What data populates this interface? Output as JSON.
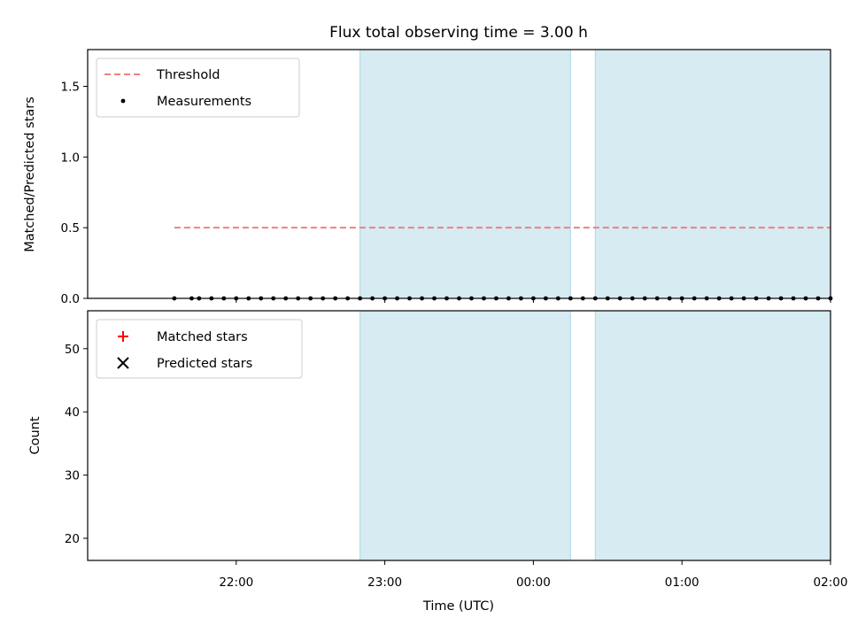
{
  "chart_data": [
    {
      "type": "scatter",
      "title": "Flux total observing time = 3.00 h",
      "ylabel": "Matched/Predicted stars",
      "xlabel": "",
      "ylim": [
        0,
        1.76
      ],
      "grid": false,
      "legend_position": "top-left",
      "y_ticks": [
        "0.0",
        "0.5",
        "1.0",
        "1.5"
      ],
      "threshold": {
        "name": "Threshold",
        "value": 0.5,
        "x_start": "21:35",
        "x_end": "02:00",
        "color": "#f08080"
      },
      "shaded_periods": [
        {
          "start": "22:50",
          "end": "00:15"
        },
        {
          "start": "00:25",
          "end": "02:00"
        }
      ],
      "shade_color": "#add8e6",
      "series": [
        {
          "name": "Measurements",
          "color": "#000000",
          "points": [
            [
              "21:35",
              0.0
            ],
            [
              "21:42",
              0.0
            ],
            [
              "21:45",
              0.0
            ],
            [
              "21:50",
              0.0
            ],
            [
              "21:55",
              0.0
            ],
            [
              "22:00",
              0.0
            ],
            [
              "22:05",
              0.0
            ],
            [
              "22:10",
              0.0
            ],
            [
              "22:15",
              0.0
            ],
            [
              "22:20",
              0.0
            ],
            [
              "22:25",
              0.0
            ],
            [
              "22:30",
              0.0
            ],
            [
              "22:35",
              0.0
            ],
            [
              "22:40",
              0.0
            ],
            [
              "22:45",
              0.0
            ],
            [
              "22:50",
              0.0
            ],
            [
              "22:55",
              0.0
            ],
            [
              "23:00",
              0.0
            ],
            [
              "23:05",
              0.0
            ],
            [
              "23:10",
              0.0
            ],
            [
              "23:15",
              0.0
            ],
            [
              "23:20",
              0.0
            ],
            [
              "23:25",
              0.0
            ],
            [
              "23:30",
              0.0
            ],
            [
              "23:35",
              0.0
            ],
            [
              "23:40",
              0.0
            ],
            [
              "23:45",
              0.0
            ],
            [
              "23:50",
              0.0
            ],
            [
              "23:55",
              0.0
            ],
            [
              "00:00",
              0.0
            ],
            [
              "00:05",
              0.0
            ],
            [
              "00:10",
              0.0
            ],
            [
              "00:15",
              0.0
            ],
            [
              "00:20",
              0.0
            ],
            [
              "00:25",
              0.0
            ],
            [
              "00:30",
              0.0
            ],
            [
              "00:35",
              0.0
            ],
            [
              "00:40",
              0.0
            ],
            [
              "00:45",
              0.0
            ],
            [
              "00:50",
              0.0
            ],
            [
              "00:55",
              0.0
            ],
            [
              "01:00",
              0.0
            ],
            [
              "01:05",
              0.0
            ],
            [
              "01:10",
              0.0
            ],
            [
              "01:15",
              0.0
            ],
            [
              "01:20",
              0.0
            ],
            [
              "01:25",
              0.0
            ],
            [
              "01:30",
              0.0
            ],
            [
              "01:35",
              0.0
            ],
            [
              "01:40",
              0.0
            ],
            [
              "01:45",
              0.0
            ],
            [
              "01:50",
              0.0
            ],
            [
              "01:55",
              0.0
            ],
            [
              "02:00",
              0.0
            ]
          ]
        }
      ]
    },
    {
      "type": "scatter",
      "title": "",
      "ylabel": "Count",
      "xlabel": "Time (UTC)",
      "ylim": [
        16.5,
        56
      ],
      "grid": false,
      "legend_position": "top-left",
      "y_ticks": [
        "20",
        "30",
        "40",
        "50"
      ],
      "x_ticks": [
        "22:00",
        "23:00",
        "00:00",
        "01:00",
        "02:00"
      ],
      "shaded_periods": [
        {
          "start": "22:50",
          "end": "00:15"
        },
        {
          "start": "00:25",
          "end": "02:00"
        }
      ],
      "series": [
        {
          "name": "Matched stars",
          "marker": "+",
          "color": "#ff0000",
          "points": []
        },
        {
          "name": "Predicted stars",
          "marker": "x",
          "color": "#000000",
          "points": []
        }
      ]
    }
  ]
}
